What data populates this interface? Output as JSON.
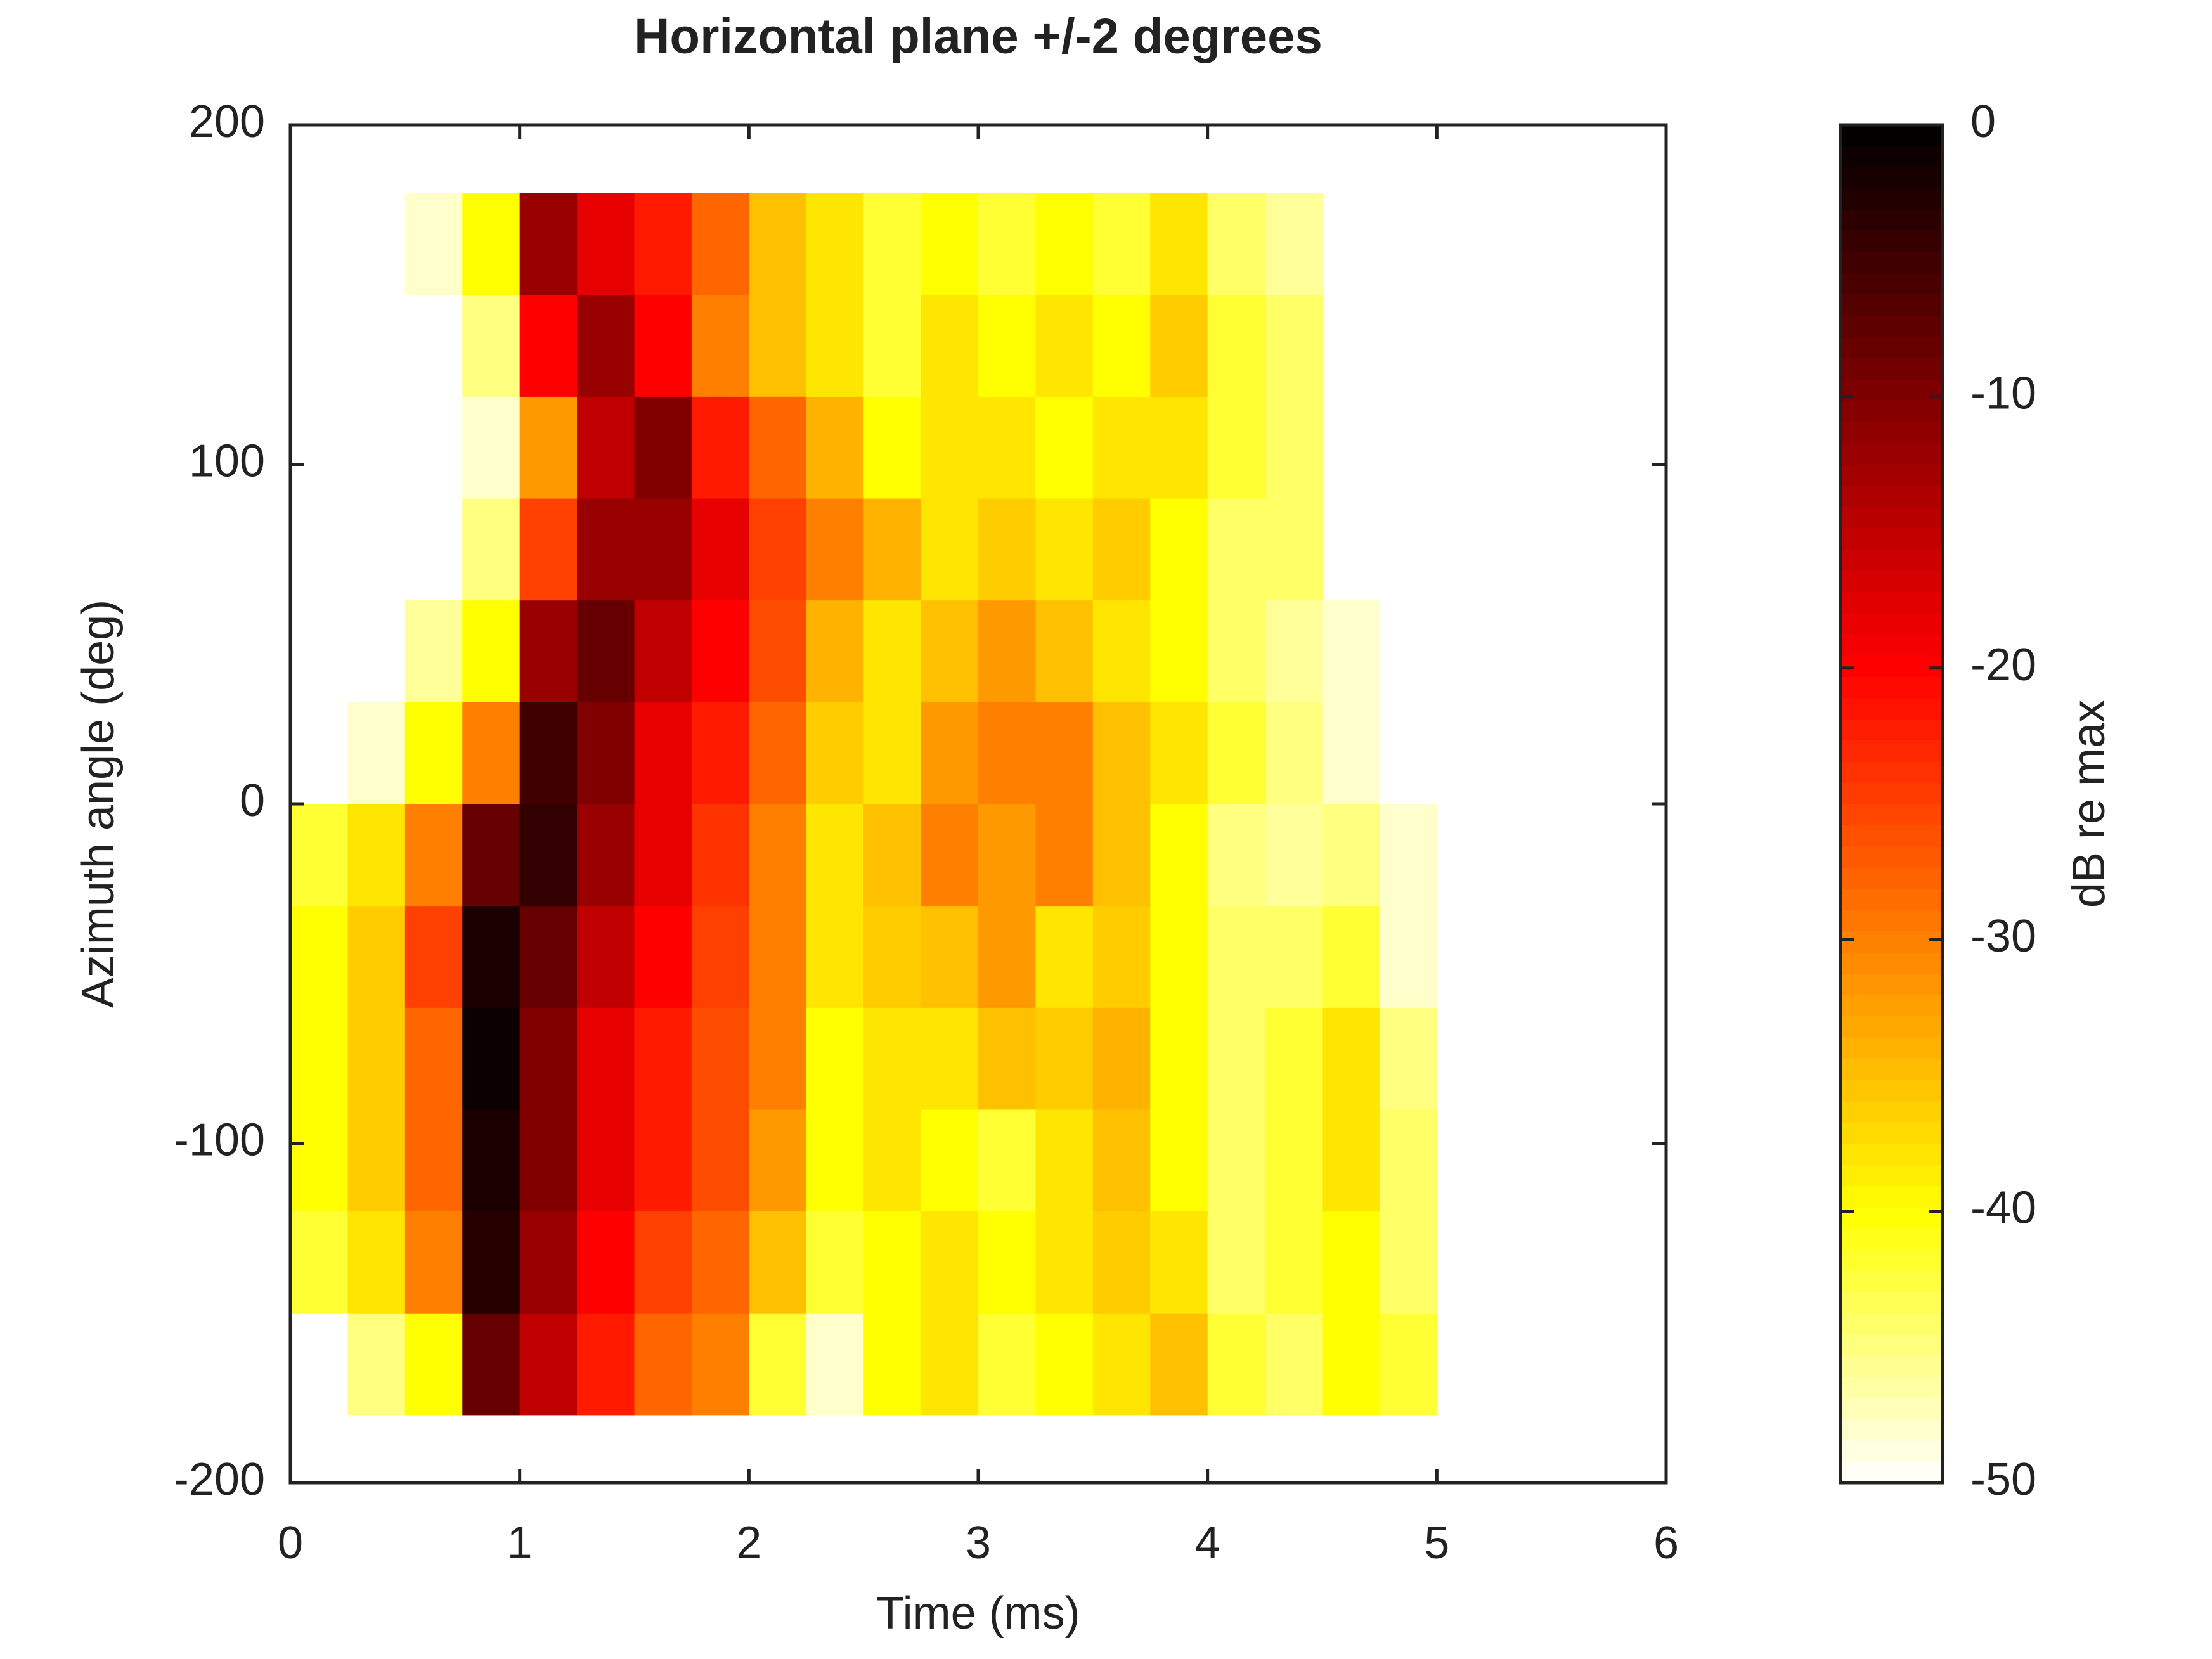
{
  "chart_data": {
    "type": "heatmap",
    "title": "Horizontal plane +/-2 degrees",
    "x_label": "Time (ms)",
    "y_label": "Azimuth angle (deg)",
    "colorbar_label": "dB re max",
    "xlim": [
      0,
      6
    ],
    "xticks": [
      0,
      1,
      2,
      3,
      4,
      5,
      6
    ],
    "ylim": [
      -200,
      200
    ],
    "yticks": [
      -200,
      -100,
      0,
      100,
      200
    ],
    "zlim": [
      -50,
      0
    ],
    "zticks": [
      -50,
      -40,
      -30,
      -20,
      -10,
      0
    ],
    "colormap": [
      "#ffffff",
      "#ffff00",
      "#ff8000",
      "#ff0000",
      "#800000",
      "#000000"
    ],
    "xbins": [
      0,
      0.25,
      0.5,
      0.75,
      1,
      1.25,
      1.5,
      1.75,
      2,
      2.25,
      2.5,
      2.75,
      3,
      3.25,
      3.5,
      3.75,
      4,
      4.25,
      4.5,
      4.75,
      5
    ],
    "ybins": [
      -180,
      -150,
      -120,
      -90,
      -60,
      -30,
      0,
      30,
      60,
      90,
      120,
      150,
      180
    ],
    "z": [
      [
        null,
        -45,
        -40,
        -8,
        -15,
        -22,
        -28,
        -30,
        -42,
        -48,
        -40,
        -38,
        -42,
        -40,
        -38,
        -35,
        -42,
        -44,
        -40,
        -42
      ],
      [
        -42,
        -38,
        -30,
        -3,
        -12,
        -20,
        -25,
        -28,
        -35,
        -42,
        -40,
        -38,
        -40,
        -38,
        -36,
        -38,
        -44,
        -42,
        -40,
        -44
      ],
      [
        -40,
        -36,
        -28,
        -2,
        -10,
        -18,
        -22,
        -26,
        -32,
        -40,
        -38,
        -40,
        -42,
        -38,
        -35,
        -40,
        -44,
        -42,
        -38,
        -44
      ],
      [
        -40,
        -36,
        -28,
        -1,
        -10,
        -18,
        -22,
        -26,
        -30,
        -40,
        -38,
        -38,
        -35,
        -36,
        -34,
        -40,
        -44,
        -42,
        -38,
        -45
      ],
      [
        -40,
        -36,
        -25,
        -2,
        -8,
        -15,
        -20,
        -25,
        -30,
        -38,
        -36,
        -35,
        -32,
        -38,
        -36,
        -40,
        -44,
        -44,
        -42,
        -48
      ],
      [
        -42,
        -38,
        -30,
        -8,
        -4,
        -12,
        -18,
        -24,
        -30,
        -38,
        -35,
        -30,
        -32,
        -30,
        -35,
        -40,
        -45,
        -46,
        -45,
        -48
      ],
      [
        null,
        -48,
        -40,
        -30,
        -5,
        -10,
        -18,
        -22,
        -28,
        -36,
        -38,
        -32,
        -30,
        -30,
        -35,
        -38,
        -42,
        -45,
        -48,
        null
      ],
      [
        null,
        null,
        -46,
        -40,
        -12,
        -8,
        -15,
        -20,
        -26,
        -34,
        -38,
        -35,
        -32,
        -35,
        -38,
        -40,
        -44,
        -46,
        -48,
        null
      ],
      [
        null,
        null,
        null,
        -45,
        -25,
        -12,
        -12,
        -18,
        -25,
        -30,
        -34,
        -38,
        -36,
        -38,
        -36,
        -40,
        -44,
        -44,
        null,
        null
      ],
      [
        null,
        null,
        null,
        -48,
        -32,
        -15,
        -10,
        -22,
        -28,
        -34,
        -40,
        -38,
        -38,
        -40,
        -38,
        -38,
        -42,
        -44,
        null,
        null
      ],
      [
        null,
        null,
        null,
        -45,
        -20,
        -12,
        -20,
        -30,
        -35,
        -38,
        -42,
        -38,
        -40,
        -38,
        -40,
        -36,
        -42,
        -44,
        null,
        null
      ],
      [
        null,
        null,
        -48,
        -40,
        -12,
        -18,
        -22,
        -28,
        -35,
        -38,
        -42,
        -40,
        -42,
        -40,
        -42,
        -38,
        -44,
        -46,
        null,
        null
      ]
    ]
  }
}
